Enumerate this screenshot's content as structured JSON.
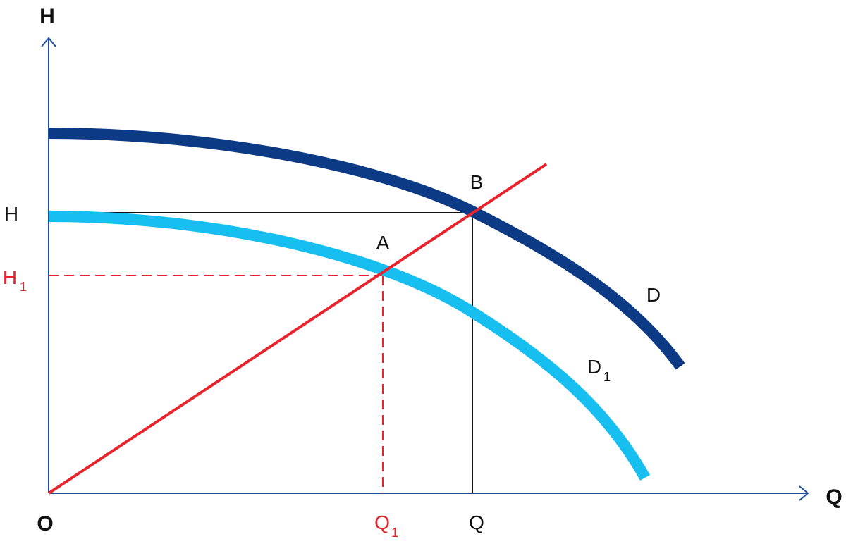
{
  "axes": {
    "y_axis_label": "H",
    "x_axis_label": "Q",
    "origin_label": "O"
  },
  "levels": {
    "h_label": "H",
    "h1_main": "H",
    "h1_sub": "1",
    "q_label": "Q",
    "q1_main": "Q",
    "q1_sub": "1"
  },
  "points": {
    "a": "A",
    "b": "B"
  },
  "curves": {
    "d_label": "D",
    "d1_main": "D",
    "d1_sub": "1"
  },
  "colors": {
    "axis": "#1f4f9b",
    "curve_d": "#0d3a85",
    "curve_d1": "#16bff0",
    "system_line": "#e8232c",
    "guide_black": "#111111",
    "guide_red": "#e8232c",
    "text_black": "#111111",
    "text_red": "#e8232c"
  }
}
